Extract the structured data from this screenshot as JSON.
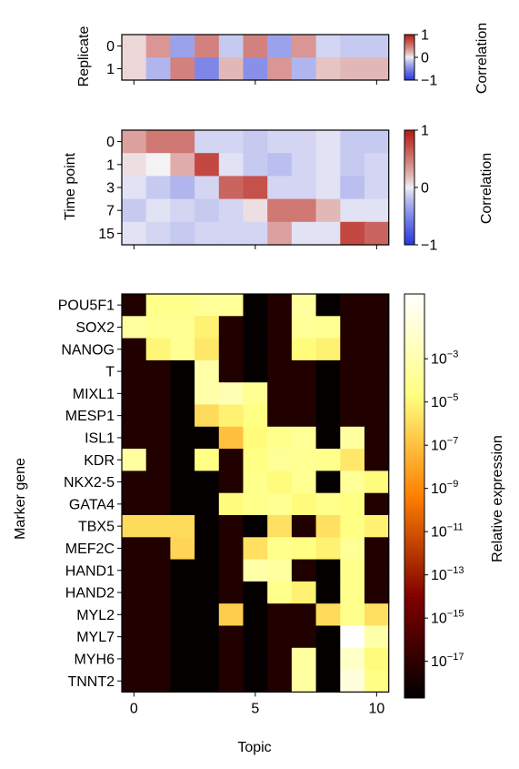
{
  "chart_data": [
    {
      "type": "heatmap",
      "panel": "replicate",
      "ylabel": "Replicate",
      "rows": [
        "0",
        "1"
      ],
      "columns": [
        0,
        1,
        2,
        3,
        4,
        5,
        6,
        7,
        8,
        9,
        10
      ],
      "values": [
        [
          0.08,
          0.35,
          -0.35,
          0.45,
          -0.15,
          0.45,
          -0.35,
          0.35,
          -0.1,
          -0.15,
          -0.15
        ],
        [
          0.08,
          -0.25,
          0.45,
          -0.5,
          0.2,
          -0.45,
          0.35,
          -0.25,
          0.15,
          0.2,
          0.2
        ]
      ],
      "colorbar": {
        "label": "Correlation",
        "range": [
          -1,
          1
        ],
        "ticks": [
          "1",
          "0",
          "−1"
        ],
        "colormap": "coolwarm"
      }
    },
    {
      "type": "heatmap",
      "panel": "timepoint",
      "ylabel": "Time point",
      "rows": [
        "0",
        "1",
        "3",
        "7",
        "15"
      ],
      "columns": [
        0,
        1,
        2,
        3,
        4,
        5,
        6,
        7,
        8,
        9,
        10
      ],
      "values": [
        [
          0.3,
          0.5,
          0.5,
          -0.1,
          -0.1,
          -0.15,
          -0.1,
          -0.1,
          -0.05,
          -0.15,
          -0.15
        ],
        [
          0.05,
          0.0,
          0.25,
          0.75,
          -0.05,
          -0.15,
          -0.2,
          -0.1,
          -0.05,
          -0.15,
          -0.1
        ],
        [
          -0.05,
          -0.15,
          -0.25,
          -0.1,
          0.6,
          0.7,
          -0.1,
          -0.1,
          -0.05,
          -0.2,
          -0.1
        ],
        [
          -0.15,
          -0.05,
          -0.1,
          -0.15,
          -0.1,
          0.05,
          0.5,
          0.5,
          0.2,
          -0.05,
          -0.05
        ],
        [
          -0.05,
          -0.1,
          -0.15,
          -0.1,
          -0.1,
          -0.1,
          0.3,
          -0.05,
          -0.05,
          0.75,
          0.6
        ]
      ],
      "colorbar": {
        "label": "Correlation",
        "range": [
          -1,
          1
        ],
        "ticks": [
          "1",
          "0",
          "−1"
        ],
        "colormap": "coolwarm"
      }
    },
    {
      "type": "heatmap",
      "panel": "markers",
      "xlabel": "Topic",
      "ylabel": "Marker gene",
      "rows": [
        "POU5F1",
        "SOX2",
        "NANOG",
        "T",
        "MIXL1",
        "MESP1",
        "ISL1",
        "KDR",
        "NKX2-5",
        "GATA4",
        "TBX5",
        "MEF2C",
        "HAND1",
        "HAND2",
        "MYL2",
        "MYL7",
        "MYH6",
        "TNNT2"
      ],
      "columns": [
        0,
        1,
        2,
        3,
        4,
        5,
        6,
        7,
        8,
        9,
        10
      ],
      "x_ticks": [
        "0",
        "5",
        "10"
      ],
      "log10_values": [
        [
          -17.5,
          -4.2,
          -4.2,
          -3.8,
          -3.8,
          -18.5,
          -17.5,
          -3.5,
          -18.5,
          -17.5,
          -17.5
        ],
        [
          -3.5,
          -4.0,
          -4.0,
          -5.2,
          -17.5,
          -18.5,
          -17.5,
          -3.8,
          -4.0,
          -17.5,
          -17.5
        ],
        [
          -17.5,
          -5.0,
          -4.0,
          -5.5,
          -17.5,
          -18.5,
          -17.5,
          -4.8,
          -5.2,
          -17.5,
          -17.5
        ],
        [
          -17.5,
          -17.5,
          -18.5,
          -3.2,
          -17.5,
          -18.5,
          -17.5,
          -17.5,
          -18.5,
          -17.5,
          -17.5
        ],
        [
          -17.5,
          -17.5,
          -18.5,
          -3.2,
          -2.8,
          -4.0,
          -17.5,
          -17.5,
          -18.5,
          -17.5,
          -17.5
        ],
        [
          -17.5,
          -17.5,
          -18.5,
          -6.0,
          -5.2,
          -4.5,
          -17.5,
          -17.5,
          -18.5,
          -17.5,
          -17.5
        ],
        [
          -17.5,
          -17.5,
          -18.5,
          -18.5,
          -7.0,
          -4.8,
          -4.2,
          -3.8,
          -18.5,
          -3.5,
          -17.5
        ],
        [
          -3.5,
          -17.5,
          -18.5,
          -4.5,
          -17.5,
          -4.5,
          -3.8,
          -4.0,
          -4.2,
          -5.5,
          -17.5
        ],
        [
          -17.5,
          -17.5,
          -18.5,
          -18.5,
          -17.5,
          -4.2,
          -4.8,
          -4.0,
          -18.5,
          -3.8,
          -4.8
        ],
        [
          -17.5,
          -17.5,
          -18.5,
          -18.5,
          -4.8,
          -4.2,
          -4.0,
          -4.8,
          -4.2,
          -4.5,
          -17.5
        ],
        [
          -6.0,
          -6.0,
          -6.0,
          -18.5,
          -17.5,
          -18.5,
          -5.8,
          -17.5,
          -5.8,
          -4.5,
          -5.2
        ],
        [
          -17.5,
          -17.5,
          -6.2,
          -18.5,
          -17.5,
          -5.8,
          -4.2,
          -4.5,
          -5.2,
          -3.8,
          -17.5
        ],
        [
          -17.5,
          -17.5,
          -18.5,
          -18.5,
          -17.5,
          -3.2,
          -3.5,
          -17.5,
          -18.5,
          -4.2,
          -17.5
        ],
        [
          -17.5,
          -17.5,
          -18.5,
          -18.5,
          -17.5,
          -18.5,
          -4.2,
          -5.2,
          -18.5,
          -4.2,
          -17.5
        ],
        [
          -17.5,
          -17.5,
          -18.5,
          -18.5,
          -6.5,
          -18.5,
          -17.5,
          -17.5,
          -6.0,
          -4.2,
          -5.8
        ],
        [
          -17.5,
          -17.5,
          -18.5,
          -18.5,
          -17.5,
          -18.5,
          -17.5,
          -17.5,
          -18.5,
          0.0,
          -3.2
        ],
        [
          -17.5,
          -17.5,
          -18.5,
          -18.5,
          -17.5,
          -18.5,
          -17.5,
          -3.5,
          -18.5,
          -2.0,
          -4.8
        ],
        [
          -17.5,
          -17.5,
          -18.5,
          -18.5,
          -17.5,
          -18.5,
          -17.5,
          -3.5,
          -18.5,
          -1.2,
          -4.5
        ]
      ],
      "colorbar": {
        "label": "Relative expression",
        "scale": "log",
        "log10_range": [
          -18.7,
          0
        ],
        "colormap": "afmhot",
        "ticks": [
          {
            "exp": -3,
            "label": "10",
            "sup": "−3"
          },
          {
            "exp": -5,
            "label": "10",
            "sup": "−5"
          },
          {
            "exp": -7,
            "label": "10",
            "sup": "−7"
          },
          {
            "exp": -9,
            "label": "10",
            "sup": "−9"
          },
          {
            "exp": -11,
            "label": "10",
            "sup": "−11"
          },
          {
            "exp": -13,
            "label": "10",
            "sup": "−13"
          },
          {
            "exp": -15,
            "label": "10",
            "sup": "−15"
          },
          {
            "exp": -17,
            "label": "10",
            "sup": "−17"
          }
        ]
      }
    }
  ]
}
